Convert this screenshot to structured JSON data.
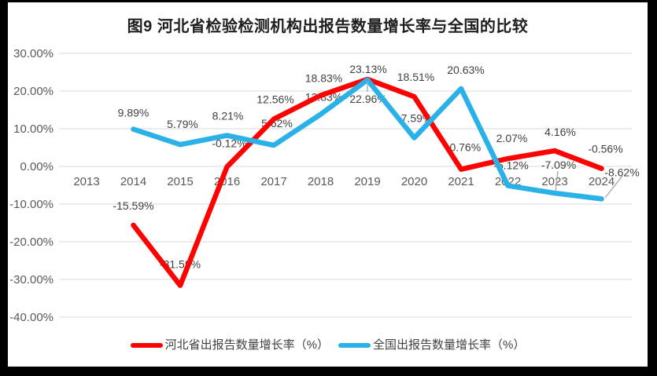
{
  "window": {
    "frame_color": "#000000",
    "canvas_color": "#ffffff"
  },
  "title": {
    "text": "图9 河北省检验检测机构出报告数量增长率与全国的比较"
  },
  "legend": {
    "items": [
      {
        "label": "河北省出报告数量增长率（%）",
        "color": "#fe0202"
      },
      {
        "label": "全国出报告数量增长率（%）",
        "color": "#2ab1e8"
      }
    ]
  },
  "axes": {
    "y_tick_labels": [
      "30.00%",
      "20.00%",
      "10.00%",
      "0.00%",
      "-10.00%",
      "-20.00%",
      "-30.00%",
      "-40.00%"
    ],
    "x_tick_labels": [
      "2013",
      "2014",
      "2015",
      "2016",
      "2017",
      "2018",
      "2019",
      "2020",
      "2021",
      "2022",
      "2023",
      "2024"
    ]
  },
  "chart_data": {
    "type": "line",
    "title": "图9 河北省检验检测机构出报告数量增长率与全国的比较",
    "categories": [
      "2013",
      "2014",
      "2015",
      "2016",
      "2017",
      "2018",
      "2019",
      "2020",
      "2021",
      "2022",
      "2023",
      "2024"
    ],
    "series": [
      {
        "name": "河北省出报告数量增长率（%）",
        "color": "#fe0202",
        "values": [
          null,
          -15.59,
          -31.59,
          -0.12,
          12.56,
          18.83,
          23.13,
          18.51,
          -0.76,
          2.07,
          4.16,
          -0.56
        ]
      },
      {
        "name": "全国出报告数量增长率（%）",
        "color": "#2ab1e8",
        "values": [
          null,
          9.89,
          5.79,
          8.21,
          5.62,
          13.83,
          22.96,
          7.59,
          20.63,
          -5.12,
          -7.09,
          -8.62
        ]
      }
    ],
    "ylim": [
      -40,
      30
    ],
    "ytick_step": 10,
    "grid": true,
    "legend_position": "bottom",
    "data_label_format": "0.00%",
    "colors": {
      "gridline": "#d9d9d9",
      "axis_text": "#595959",
      "data_label_text": "#404040",
      "leader_line": "#a6a6a6"
    },
    "label_offsets": [
      [
        null,
        [
          0,
          -25
        ],
        [
          0,
          -27
        ],
        [
          3,
          -30
        ],
        [
          2,
          -25
        ],
        [
          4,
          -22
        ],
        [
          1,
          -13
        ],
        [
          2,
          -25
        ],
        [
          3,
          -28
        ],
        [
          5,
          -26
        ],
        [
          7,
          -24
        ],
        [
          5,
          -25
        ]
      ],
      [
        null,
        [
          0,
          -21
        ],
        [
          3,
          -26
        ],
        [
          1,
          -25
        ],
        [
          4,
          -28
        ],
        [
          4,
          -22
        ],
        [
          1,
          24
        ],
        [
          3,
          -25
        ],
        [
          6,
          -24
        ],
        [
          4,
          -26
        ],
        [
          5,
          -36
        ],
        [
          26,
          -34
        ]
      ]
    ],
    "leader_lines": [
      [
        457,
        100,
        457,
        114
      ],
      [
        699,
        215,
        696,
        241
      ],
      [
        759,
        249,
        781,
        221
      ]
    ]
  }
}
